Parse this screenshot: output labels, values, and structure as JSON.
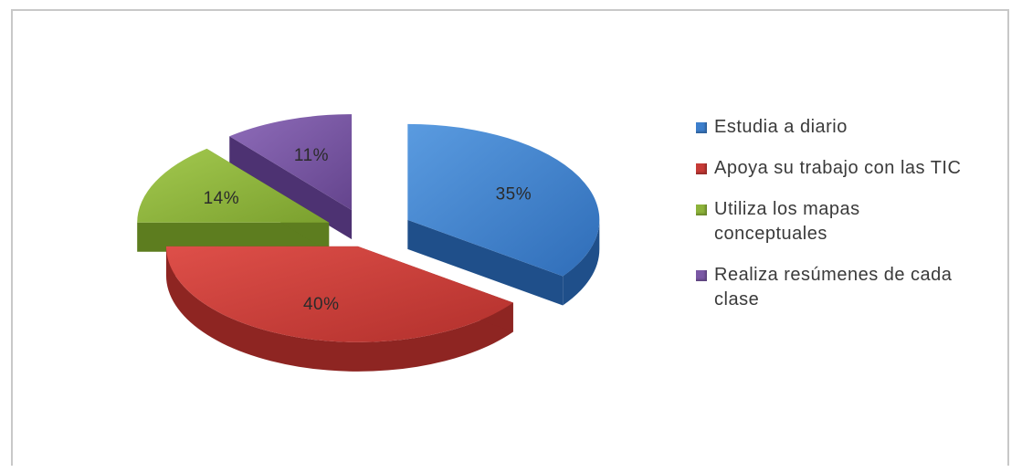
{
  "chart_data": {
    "type": "pie",
    "title": "",
    "categories": [
      "Estudia a diario",
      "Apoya su trabajo con las TIC",
      "Utiliza los mapas conceptuales",
      "Realiza resúmenes de cada clase"
    ],
    "values": [
      35,
      40,
      14,
      11
    ],
    "data_labels": [
      "35%",
      "40%",
      "14%",
      "11%"
    ],
    "colors": [
      "#3d7fcc",
      "#c63a36",
      "#8db33a",
      "#7a58a5"
    ],
    "exploded": true,
    "legend_position": "right"
  },
  "legend": {
    "items": [
      {
        "label": "Estudia a diario",
        "color": "#3d7fcc"
      },
      {
        "label": "Apoya su trabajo con las TIC",
        "color": "#c63a36"
      },
      {
        "label": "Utiliza los mapas conceptuales",
        "color": "#8db33a"
      },
      {
        "label": "Realiza resúmenes de cada clase",
        "color": "#7a58a5"
      }
    ]
  }
}
